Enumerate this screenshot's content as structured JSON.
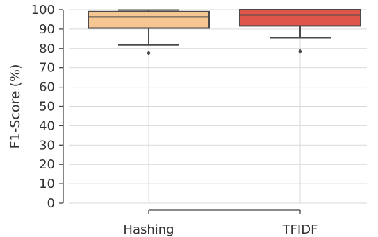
{
  "chart_data": {
    "type": "box",
    "title": "",
    "xlabel": "",
    "ylabel": "F1-Score (%)",
    "ylim": [
      0,
      100
    ],
    "yticks": [
      0,
      10,
      20,
      30,
      40,
      50,
      60,
      70,
      80,
      90,
      100
    ],
    "grid": true,
    "legend": "none",
    "categories": [
      "Hashing",
      "TFIDF"
    ],
    "boxes": [
      {
        "label": "Hashing",
        "color": "#f5c592",
        "whisker_low": 81.8,
        "q1": 90.5,
        "median": 96.3,
        "q3": 99.0,
        "whisker_high": 99.8,
        "outliers": [
          77.6
        ]
      },
      {
        "label": "TFIDF",
        "color": "#e0554a",
        "whisker_low": 85.5,
        "q1": 91.6,
        "median": 97.3,
        "q3": 100.0,
        "whisker_high": 100.0,
        "outliers": [
          78.5
        ]
      }
    ],
    "colors": {
      "grid": "#d9d9d9",
      "axis": "#444444",
      "box_edge": "#4a4a4a"
    }
  }
}
